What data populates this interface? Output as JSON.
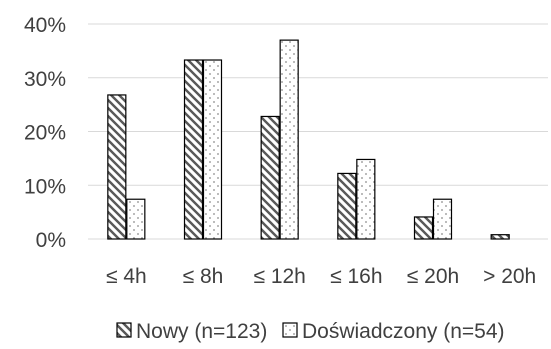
{
  "chart_data": {
    "type": "bar",
    "title": "",
    "xlabel": "",
    "ylabel": "",
    "categories": [
      "≤ 4h",
      "≤ 8h",
      "≤ 12h",
      "≤ 16h",
      "≤ 20h",
      "> 20h"
    ],
    "series": [
      {
        "name": "Nowy (n=123)",
        "values": [
          26.8,
          33.3,
          22.8,
          12.2,
          4.1,
          0.8
        ],
        "pattern": "diagonal-hatch"
      },
      {
        "name": "Doświadczony (n=54)",
        "values": [
          7.4,
          33.3,
          37.0,
          14.8,
          7.4,
          0.0
        ],
        "pattern": "dots"
      }
    ],
    "ylim": [
      0,
      40
    ],
    "yticks": [
      "0%",
      "10%",
      "20%",
      "30%",
      "40%"
    ],
    "ytick_values": [
      0,
      10,
      20,
      30,
      40
    ],
    "grid": true,
    "legend_position": "bottom",
    "colors": {
      "gridline": "#d9d9d9",
      "bar_outline": "#000000",
      "text": "#404040"
    }
  }
}
